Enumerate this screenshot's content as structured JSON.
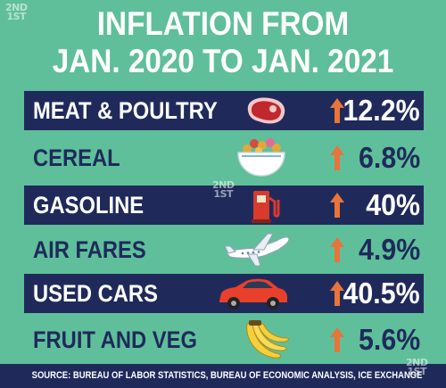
{
  "watermark": {
    "line1": "2ND",
    "line2": "1ST"
  },
  "title": {
    "line1": "INFLATION FROM",
    "line2": "JAN. 2020 TO JAN. 2021"
  },
  "chart_data": {
    "type": "table",
    "title": "INFLATION FROM JAN. 2020 TO JAN. 2021",
    "rows": [
      {
        "category": "MEAT & POULTRY",
        "value": 12.2,
        "display": "12.2%",
        "icon": "steak-icon",
        "direction": "up"
      },
      {
        "category": "CEREAL",
        "value": 6.8,
        "display": "6.8%",
        "icon": "cereal-bowl-icon",
        "direction": "up"
      },
      {
        "category": "GASOLINE",
        "value": 40,
        "display": "40%",
        "icon": "gas-pump-icon",
        "direction": "up"
      },
      {
        "category": "AIR FARES",
        "value": 4.9,
        "display": "4.9%",
        "icon": "airplane-icon",
        "direction": "up"
      },
      {
        "category": "USED CARS",
        "value": 40.5,
        "display": "40.5%",
        "icon": "car-icon",
        "direction": "up"
      },
      {
        "category": "FRUIT AND VEG",
        "value": 5.6,
        "display": "5.6%",
        "icon": "banana-icon",
        "direction": "up"
      }
    ],
    "unit": "%"
  },
  "source": "SOURCE: BUREAU OF LABOR STATISTICS, BUREAU OF ECONOMIC ANALYSIS, ICE EXCHANGE",
  "colors": {
    "background": "#5fbf9a",
    "dark_row": "#1f2a5b",
    "arrow": "#e8743b",
    "text_light": "#ffffff",
    "text_dark": "#1f2a5b"
  }
}
